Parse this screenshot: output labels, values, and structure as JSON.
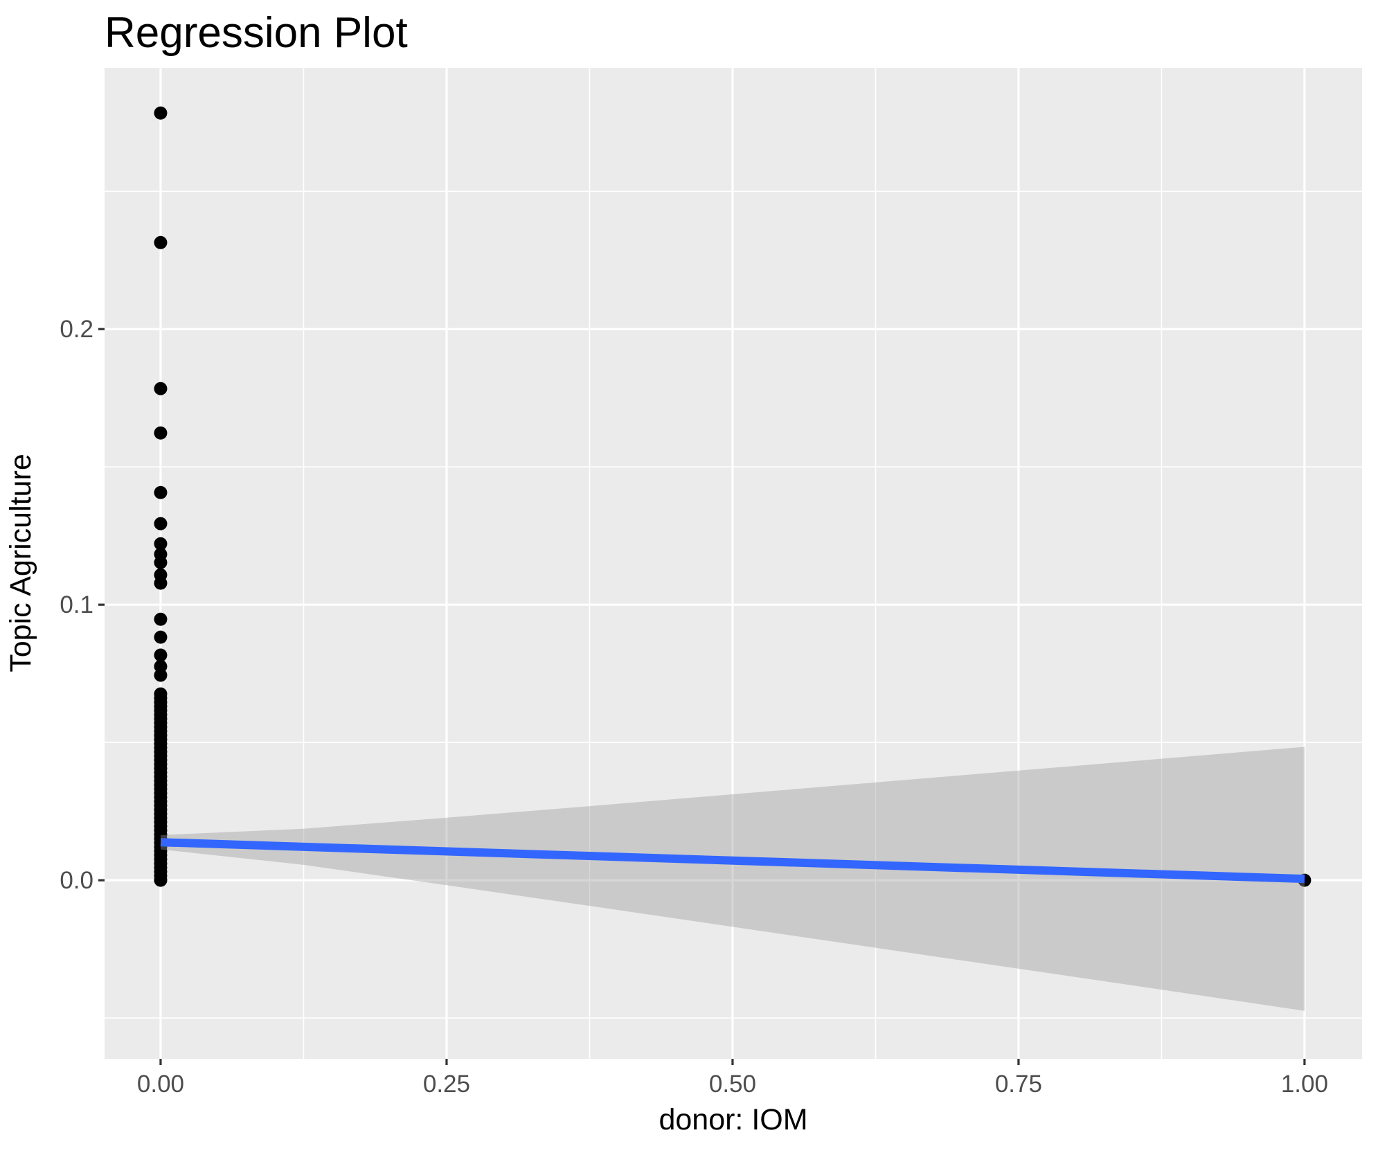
{
  "chart_data": {
    "type": "scatter",
    "title": "Regression Plot",
    "xlabel": "donor: IOM",
    "ylabel": "Topic Agriculture",
    "xlim": [
      -0.049,
      1.0503
    ],
    "ylim": [
      -0.0648,
      0.2948
    ],
    "grid": "on",
    "legend": "none",
    "x_major_breaks": [
      0,
      0.25,
      0.5,
      0.75,
      1.0
    ],
    "x_major_labels": [
      "0.00",
      "0.25",
      "0.50",
      "0.75",
      "1.00"
    ],
    "x_minor_breaks": [
      0.125,
      0.375,
      0.625,
      0.875
    ],
    "y_major_breaks": [
      0,
      0.1,
      0.2
    ],
    "y_major_labels": [
      "0.0",
      "0.1",
      "0.2"
    ],
    "y_minor_breaks": [
      -0.05,
      0.05,
      0.15,
      0.25
    ],
    "points_x0": [
      0.2784,
      0.2314,
      0.1784,
      0.1623,
      0.1407,
      0.1294,
      0.1221,
      0.1183,
      0.1153,
      0.1108,
      0.1078,
      0.0947,
      0.0882,
      0.0817,
      0.0776,
      0.0744
    ],
    "points_x0_dense_column": [
      0.0676,
      0.0661,
      0.0646,
      0.0631,
      0.0616,
      0.0601,
      0.0586,
      0.0571,
      0.0556,
      0.0541,
      0.0526,
      0.0511,
      0.0496,
      0.0481,
      0.0466,
      0.0451,
      0.0436,
      0.0421,
      0.0406,
      0.0391,
      0.0376,
      0.0361,
      0.0346,
      0.0331,
      0.0316,
      0.0301,
      0.0286,
      0.0271,
      0.0256,
      0.0241,
      0.0226,
      0.0211,
      0.0196,
      0.0181,
      0.0166,
      0.0151,
      0.0136,
      0.0121,
      0.0106,
      0.0091,
      0.0076,
      0.0061,
      0.0046,
      0.0031,
      0.0016,
      0.0001,
      0.0
    ],
    "points_x1": [
      0.0
    ],
    "regression_line": {
      "x": [
        0,
        1
      ],
      "y": [
        0.0138,
        0.0005
      ]
    },
    "confidence_band": [
      {
        "x": 0.0,
        "lower": 0.0112,
        "upper": 0.0164
      },
      {
        "x": 0.125,
        "lower": 0.0056,
        "upper": 0.0187
      },
      {
        "x": 0.25,
        "lower": -0.0018,
        "upper": 0.0227
      },
      {
        "x": 0.375,
        "lower": -0.0093,
        "upper": 0.0269
      },
      {
        "x": 0.5,
        "lower": -0.0169,
        "upper": 0.0312
      },
      {
        "x": 0.625,
        "lower": -0.0245,
        "upper": 0.0355
      },
      {
        "x": 0.75,
        "lower": -0.0321,
        "upper": 0.0398
      },
      {
        "x": 0.875,
        "lower": -0.0397,
        "upper": 0.0441
      },
      {
        "x": 1.0,
        "lower": -0.0474,
        "upper": 0.0484
      }
    ],
    "colors": {
      "panel_background": "#EBEBEB",
      "gridline": "#FFFFFF",
      "point": "#000000",
      "regression_line": "#3366FF",
      "confidence_band_fill": "#999999",
      "confidence_band_opacity": 0.4,
      "axis_tick_text": "#4D4D4D",
      "tick_mark": "#333333",
      "title_text": "#000000",
      "axis_title_text": "#000000"
    }
  }
}
